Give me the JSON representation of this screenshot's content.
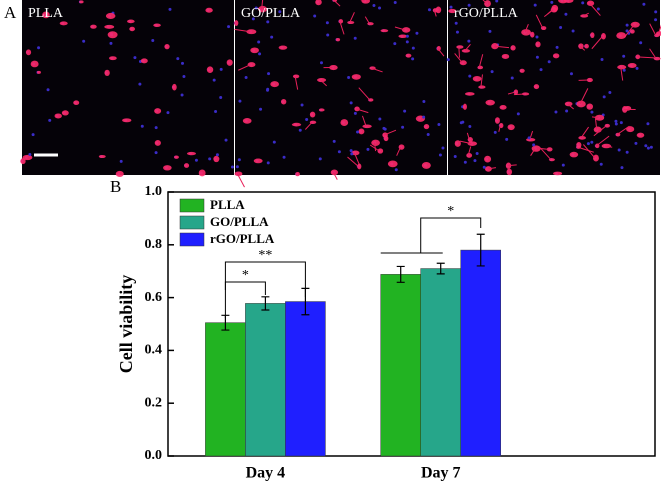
{
  "panel_a": {
    "label": "A",
    "images": [
      "PLLA",
      "GO/PLLA",
      "rGO/PLLA"
    ]
  },
  "chart_data": {
    "type": "bar",
    "panel_label": "B",
    "y_label": "Cell viability",
    "categories": [
      "Day 4",
      "Day 7"
    ],
    "series": [
      {
        "name": "PLLA",
        "color": "#22b322",
        "values": [
          0.505,
          0.688
        ],
        "errors": [
          0.028,
          0.03
        ]
      },
      {
        "name": "GO/PLLA",
        "color": "#26a68a",
        "values": [
          0.578,
          0.71
        ],
        "errors": [
          0.025,
          0.02
        ]
      },
      {
        "name": "rGO/PLLA",
        "color": "#1f1fff",
        "values": [
          0.585,
          0.78
        ],
        "errors": [
          0.05,
          0.06
        ]
      }
    ],
    "ylim": [
      0,
      1.0
    ],
    "yticks": [
      {
        "value": 0,
        "label": "0.0"
      },
      0.2,
      0.4,
      0.6,
      0.8,
      {
        "value": 1.0,
        "label": "1.0"
      }
    ],
    "annotations": [
      {
        "text": "*"
      },
      {
        "text": "**"
      },
      {
        "text": "*"
      }
    ]
  }
}
